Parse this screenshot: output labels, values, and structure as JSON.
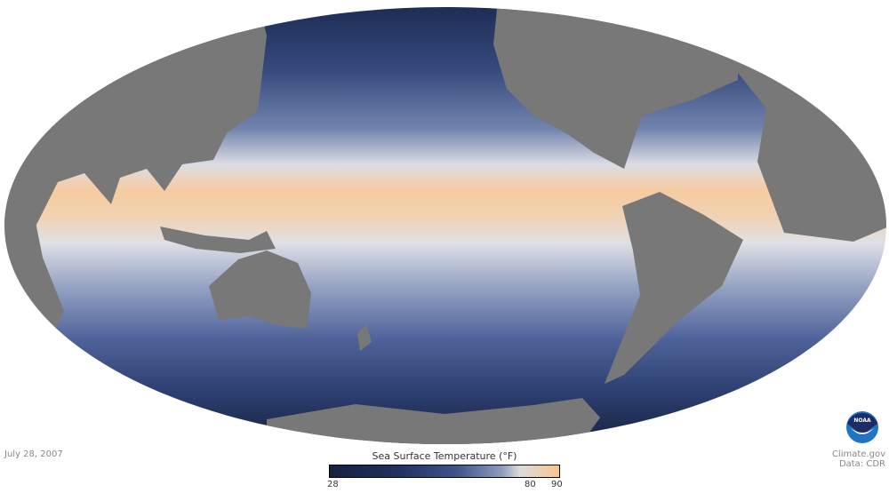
{
  "date": "July 28, 2007",
  "legend": {
    "title": "Sea Surface Temperature (°F)",
    "ticks": [
      "28",
      "80",
      "90"
    ],
    "range": [
      28,
      90
    ],
    "colors": [
      "#16203f",
      "#3c548a",
      "#dcdcdc",
      "#f6c68e"
    ]
  },
  "credit": {
    "line1": "Climate.gov",
    "line2": "Data: CDR"
  },
  "logo": {
    "text": "NOAA"
  },
  "colors": {
    "land": "#787878",
    "ocean_cold": "#1a2547",
    "ocean_warm": "#f6c79a"
  }
}
